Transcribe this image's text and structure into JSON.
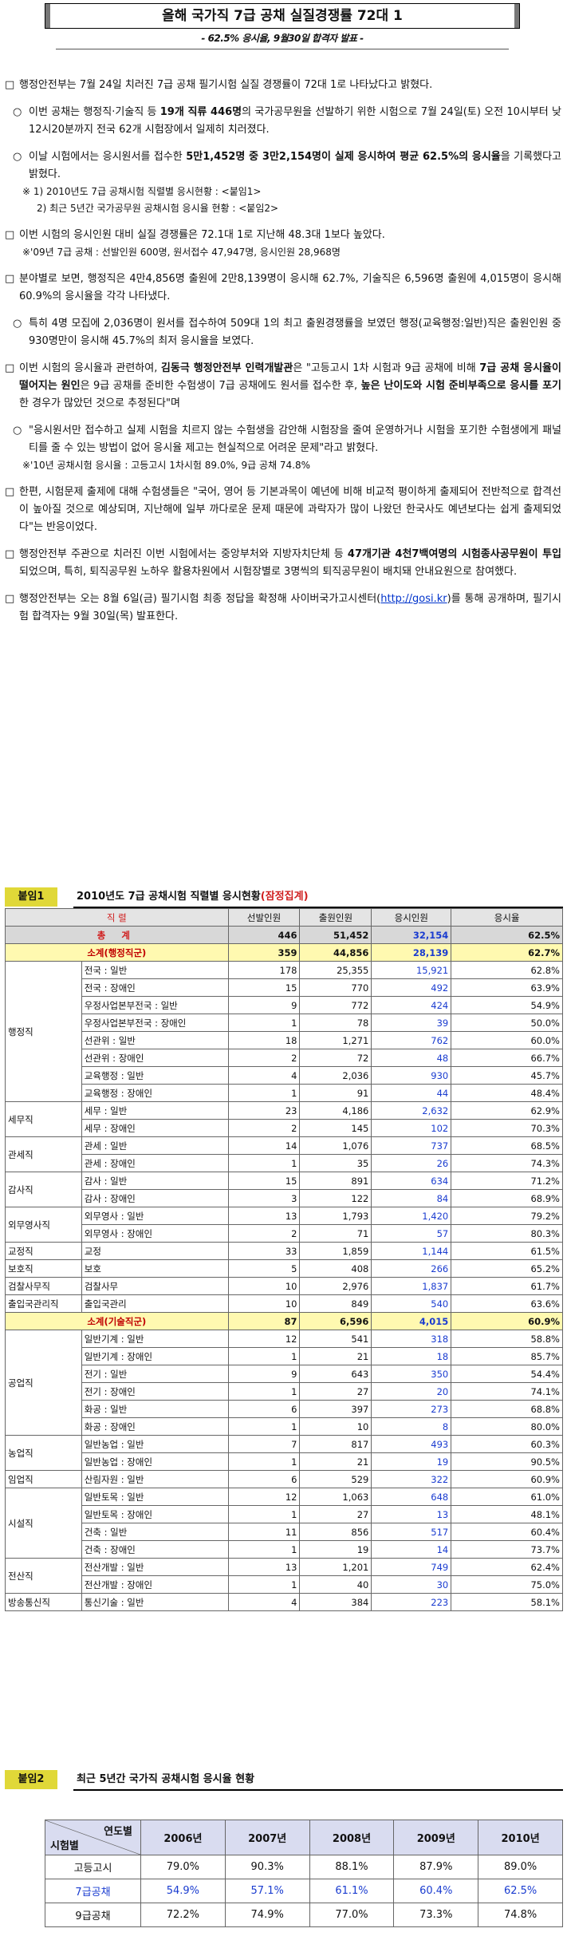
{
  "title": "올해 국가직 7급 공채 실질경쟁률 72대 1",
  "subtitle": "- 62.5% 응시율, 9월30일 합격자 발표 -",
  "paragraphs": {
    "p1": {
      "bullet": "□",
      "text": "행정안전부는 7월 24일 치러진 7급 공채 필기시험 실질 경쟁률이 72대 1로 나타났다고 밝혔다."
    },
    "p2": {
      "bullet": "○",
      "a": "이번 공채는 행정직·기술직 등 ",
      "b": "19개 직류 446명",
      "c": "의 국가공무원을 선발하기 위한 시험으로 7월 24일(토) 오전 10시부터 낮 12시20분까지 전국 62개 시험장에서 일제히 치러졌다."
    },
    "p3": {
      "bullet": "○",
      "a": "이날 시험에서는 응시원서를 접수한 ",
      "b": "5만1,452명 중 3만2,154명이 실제 응시하여 평균 62.5%의 응시율",
      "c": "을 기록했다고 밝혔다."
    },
    "note1": "※ 1) 2010년도 7급 공채시험 직렬별 응시현황 : <붙임1>",
    "note2": "2) 최근 5년간 국가공무원 공채시험 응시율 현황 : <붙임2>",
    "p4": {
      "bullet": "□",
      "text": "이번 시험의 응시인원 대비 실질 경쟁률은 72.1대 1로 지난해 48.3대 1보다 높았다."
    },
    "note3": "※'09년 7급 공채 : 선발인원 600명, 원서접수 47,947명, 응시인원 28,968명",
    "p5": {
      "bullet": "□",
      "text": "분야별로 보면, 행정직은 4만4,856명 출원에 2만8,139명이 응시해 62.7%, 기술직은 6,596명 출원에 4,015명이 응시해 60.9%의 응시율을 각각 나타냈다."
    },
    "p6": {
      "bullet": "○",
      "text": "특히 4명 모집에 2,036명이 원서를 접수하여 509대 1의 최고 출원경쟁률을 보였던 행정(교육행정:일반)직은 출원인원 중 930명만이 응시해 45.7%의 최저 응시율을 보였다."
    },
    "p7": {
      "bullet": "□",
      "a": "이번 시험의 응시율과 관련하여, ",
      "b": "김동극 행정안전부 인력개발관",
      "c": "은 \"고등고시 1차 시험과 9급 공채에 비해 ",
      "d": "7급 공채 응시율이 떨어지는 원인",
      "e": "은 9급 공채를 준비한 수험생이 7급 공채에도 원서를 접수한 후, ",
      "f": "높은 난이도와 시험 준비부족으로 응시를 포기",
      "g": "한 경우가 많았던 것으로 추정된다\"며"
    },
    "p8": {
      "bullet": "○",
      "text": "\"응시원서만 접수하고 실제 시험을 치르지 않는 수험생을 감안해 시험장을 줄여 운영하거나 시험을 포기한 수험생에게 패널티를 줄 수 있는 방법이 없어 응시율 제고는 현실적으로 어려운 문제\"라고 밝혔다."
    },
    "note4": "※'10년 공채시험 응시율 : 고등고시 1차시험 89.0%, 9급 공채 74.8%",
    "p9": {
      "bullet": "□",
      "text": "한편, 시험문제 출제에 대해 수험생들은 \"국어, 영어 등 기본과목이 예년에 비해 비교적 평이하게 출제되어 전반적으로 합격선이 높아질 것으로 예상되며, 지난해에 일부 까다로운 문제 때문에 과락자가 많이 나왔던 한국사도 예년보다는 쉽게 출제되었다\"는 반응이었다."
    },
    "p10": {
      "bullet": "□",
      "a": "행정안전부 주관으로 치러진 이번 시험에서는 중앙부처와 지방자치단체 등 ",
      "b": "47개기관 4천7백여명의 시험종사공무원이 투입",
      "c": "되었으며, 특히, 퇴직공무원 노하우 활용차원에서 시험장별로 3명씩의 퇴직공무원이 배치돼 안내요원으로 참여했다."
    },
    "p11": {
      "bullet": "□",
      "a": "행정안전부는 오는 8월 6일(금) 필기시험 최종 정답을 확정해 사이버국가고시센터(",
      "link": "http://gosi.kr",
      "c": ")를 통해 공개하며, 필기시험 합격자는 9월 30일(목) 발표한다."
    }
  },
  "section1": {
    "tag": "붙임1",
    "title": "2010년도 7급 공채시험 직렬별 응시현황",
    "title_note": "(잠정집계)"
  },
  "table1": {
    "headers": [
      "직 렬",
      "선발인원",
      "출원인원",
      "응시인원",
      "응시율"
    ],
    "total": {
      "label": "총 계",
      "values": [
        "446",
        "51,452",
        "32,154",
        "62.5%"
      ]
    },
    "sub_admin": {
      "label": "소계(행정직군)",
      "values": [
        "359",
        "44,856",
        "28,139",
        "62.7%"
      ]
    },
    "sub_tech": {
      "label": "소계(기술직군)",
      "values": [
        "87",
        "6,596",
        "4,015",
        "60.9%"
      ]
    },
    "admin_groups": [
      {
        "group": "행정직",
        "rows": [
          {
            "cat": "전국 : 일반",
            "v": [
              "178",
              "25,355",
              "15,921",
              "62.8%"
            ]
          },
          {
            "cat": "전국 : 장애인",
            "v": [
              "15",
              "770",
              "492",
              "63.9%"
            ]
          },
          {
            "cat": "우정사업본부전국 : 일반",
            "v": [
              "9",
              "772",
              "424",
              "54.9%"
            ]
          },
          {
            "cat": "우정사업본부전국 : 장애인",
            "v": [
              "1",
              "78",
              "39",
              "50.0%"
            ]
          },
          {
            "cat": "선관위 : 일반",
            "v": [
              "18",
              "1,271",
              "762",
              "60.0%"
            ]
          },
          {
            "cat": "선관위 : 장애인",
            "v": [
              "2",
              "72",
              "48",
              "66.7%"
            ]
          },
          {
            "cat": "교육행정 : 일반",
            "v": [
              "4",
              "2,036",
              "930",
              "45.7%"
            ]
          },
          {
            "cat": "교육행정 : 장애인",
            "v": [
              "1",
              "91",
              "44",
              "48.4%"
            ]
          }
        ]
      },
      {
        "group": "세무직",
        "rows": [
          {
            "cat": "세무 : 일반",
            "v": [
              "23",
              "4,186",
              "2,632",
              "62.9%"
            ]
          },
          {
            "cat": "세무 : 장애인",
            "v": [
              "2",
              "145",
              "102",
              "70.3%"
            ]
          }
        ]
      },
      {
        "group": "관세직",
        "rows": [
          {
            "cat": "관세 : 일반",
            "v": [
              "14",
              "1,076",
              "737",
              "68.5%"
            ]
          },
          {
            "cat": "관세 : 장애인",
            "v": [
              "1",
              "35",
              "26",
              "74.3%"
            ]
          }
        ]
      },
      {
        "group": "감사직",
        "rows": [
          {
            "cat": "감사 : 일반",
            "v": [
              "15",
              "891",
              "634",
              "71.2%"
            ]
          },
          {
            "cat": "감사 : 장애인",
            "v": [
              "3",
              "122",
              "84",
              "68.9%"
            ]
          }
        ]
      },
      {
        "group": "외무영사직",
        "rows": [
          {
            "cat": "외무영사 : 일반",
            "v": [
              "13",
              "1,793",
              "1,420",
              "79.2%"
            ]
          },
          {
            "cat": "외무영사 : 장애인",
            "v": [
              "2",
              "71",
              "57",
              "80.3%"
            ]
          }
        ]
      },
      {
        "group": "교정직",
        "rows": [
          {
            "cat": "교정",
            "v": [
              "33",
              "1,859",
              "1,144",
              "61.5%"
            ]
          }
        ]
      },
      {
        "group": "보호직",
        "rows": [
          {
            "cat": "보호",
            "v": [
              "5",
              "408",
              "266",
              "65.2%"
            ]
          }
        ]
      },
      {
        "group": "검찰사무직",
        "rows": [
          {
            "cat": "검찰사무",
            "v": [
              "10",
              "2,976",
              "1,837",
              "61.7%"
            ]
          }
        ]
      },
      {
        "group": "출입국관리직",
        "rows": [
          {
            "cat": "출입국관리",
            "v": [
              "10",
              "849",
              "540",
              "63.6%"
            ]
          }
        ]
      }
    ],
    "tech_groups": [
      {
        "group": "공업직",
        "rows": [
          {
            "cat": "일반기계 : 일반",
            "v": [
              "12",
              "541",
              "318",
              "58.8%"
            ]
          },
          {
            "cat": "일반기계 : 장애인",
            "v": [
              "1",
              "21",
              "18",
              "85.7%"
            ]
          },
          {
            "cat": "전기 : 일반",
            "v": [
              "9",
              "643",
              "350",
              "54.4%"
            ]
          },
          {
            "cat": "전기 : 장애인",
            "v": [
              "1",
              "27",
              "20",
              "74.1%"
            ]
          },
          {
            "cat": "화공 : 일반",
            "v": [
              "6",
              "397",
              "273",
              "68.8%"
            ]
          },
          {
            "cat": "화공 : 장애인",
            "v": [
              "1",
              "10",
              "8",
              "80.0%"
            ]
          }
        ]
      },
      {
        "group": "농업직",
        "rows": [
          {
            "cat": "일반농업 : 일반",
            "v": [
              "7",
              "817",
              "493",
              "60.3%"
            ]
          },
          {
            "cat": "일반농업 : 장애인",
            "v": [
              "1",
              "21",
              "19",
              "90.5%"
            ]
          }
        ]
      },
      {
        "group": "임업직",
        "rows": [
          {
            "cat": "산림자원 : 일반",
            "v": [
              "6",
              "529",
              "322",
              "60.9%"
            ]
          }
        ]
      },
      {
        "group": "시설직",
        "rows": [
          {
            "cat": "일반토목 : 일반",
            "v": [
              "12",
              "1,063",
              "648",
              "61.0%"
            ]
          },
          {
            "cat": "일반토목 : 장애인",
            "v": [
              "1",
              "27",
              "13",
              "48.1%"
            ]
          },
          {
            "cat": "건축 : 일반",
            "v": [
              "11",
              "856",
              "517",
              "60.4%"
            ]
          },
          {
            "cat": "건축 : 장애인",
            "v": [
              "1",
              "19",
              "14",
              "73.7%"
            ]
          }
        ]
      },
      {
        "group": "전산직",
        "rows": [
          {
            "cat": "전산개발 : 일반",
            "v": [
              "13",
              "1,201",
              "749",
              "62.4%"
            ]
          },
          {
            "cat": "전산개발 : 장애인",
            "v": [
              "1",
              "40",
              "30",
              "75.0%"
            ]
          }
        ]
      },
      {
        "group": "방송통신직",
        "rows": [
          {
            "cat": "통신기술 : 일반",
            "v": [
              "4",
              "384",
              "223",
              "58.1%"
            ]
          }
        ]
      }
    ]
  },
  "section2": {
    "tag": "붙임2",
    "title": "최근 5년간 국가직 공채시험 응시율 현황"
  },
  "table2": {
    "corner_top": "연도별",
    "corner_bottom": "시험별",
    "years": [
      "2006년",
      "2007년",
      "2008년",
      "2009년",
      "2010년"
    ],
    "rows": [
      {
        "label": "고등고시",
        "values": [
          "79.0%",
          "90.3%",
          "88.1%",
          "87.9%",
          "89.0%"
        ],
        "blue": false
      },
      {
        "label": "7급공채",
        "values": [
          "54.9%",
          "57.1%",
          "61.1%",
          "60.4%",
          "62.5%"
        ],
        "blue": true
      },
      {
        "label": "9급공채",
        "values": [
          "72.2%",
          "74.9%",
          "77.0%",
          "73.3%",
          "74.8%"
        ],
        "blue": false
      }
    ]
  }
}
